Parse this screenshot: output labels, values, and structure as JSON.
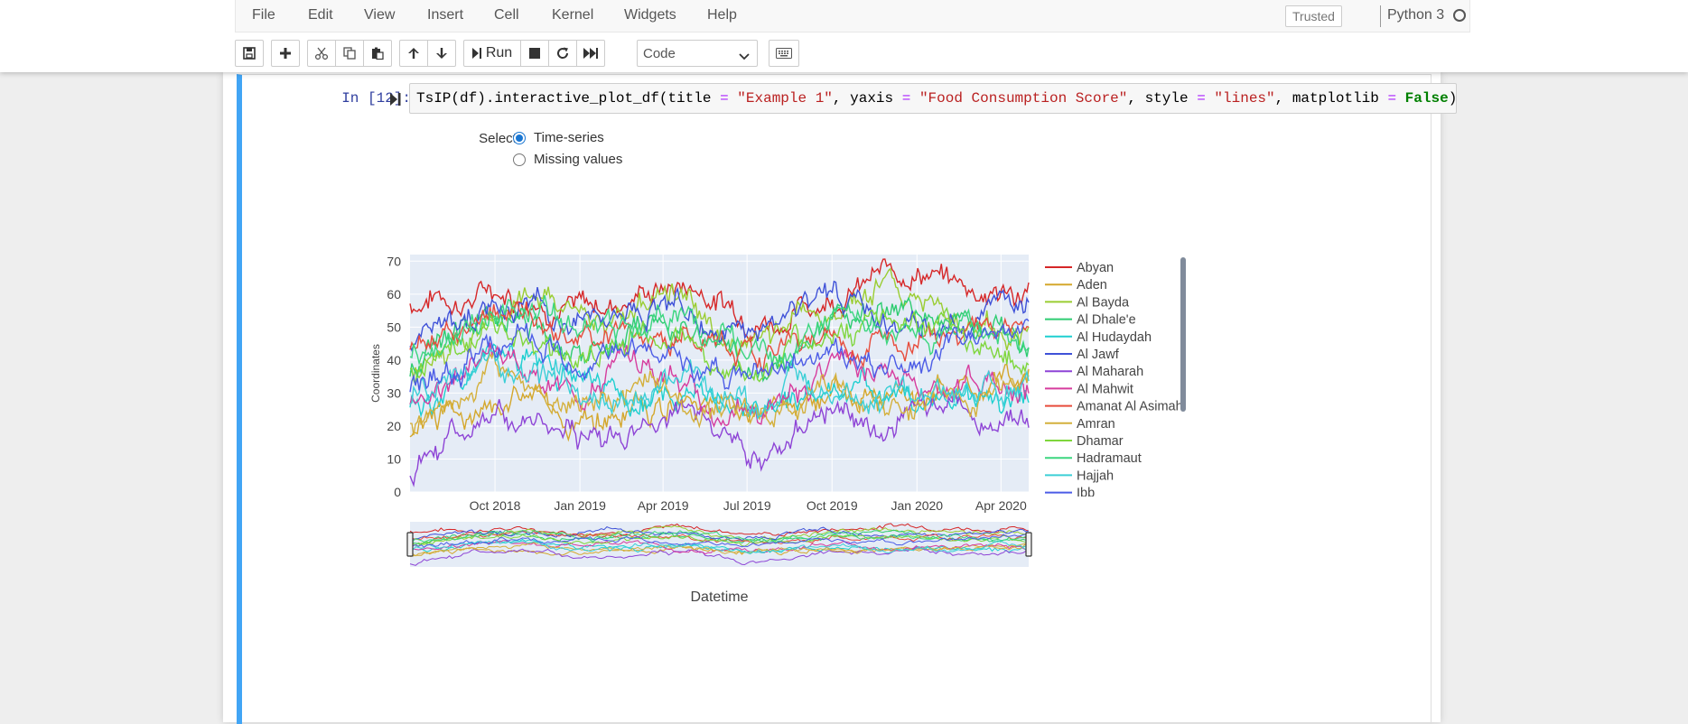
{
  "menu": {
    "items": [
      "File",
      "Edit",
      "View",
      "Insert",
      "Cell",
      "Kernel",
      "Widgets",
      "Help"
    ],
    "trusted": "Trusted",
    "kernel": "Python 3"
  },
  "toolbar": {
    "run_label": "Run",
    "cell_type": "Code",
    "icons": [
      "save-icon",
      "plus-icon",
      "cut-icon",
      "copy-icon",
      "paste-icon",
      "arrow-up-icon",
      "arrow-down-icon",
      "run-icon",
      "stop-icon",
      "restart-icon",
      "fast-forward-icon",
      "keyboard-icon"
    ]
  },
  "cell": {
    "prompt": "In [12]:",
    "code_tokens": [
      {
        "t": "TsIP(df).interactive_plot_df(title ",
        "c": ""
      },
      {
        "t": "=",
        "c": "op"
      },
      {
        "t": " ",
        "c": ""
      },
      {
        "t": "\"Example 1\"",
        "c": "str"
      },
      {
        "t": ", yaxis ",
        "c": ""
      },
      {
        "t": "=",
        "c": "op"
      },
      {
        "t": " ",
        "c": ""
      },
      {
        "t": "\"Food Consumption Score\"",
        "c": "str"
      },
      {
        "t": ", style ",
        "c": ""
      },
      {
        "t": "=",
        "c": "op"
      },
      {
        "t": " ",
        "c": ""
      },
      {
        "t": "\"lines\"",
        "c": "str"
      },
      {
        "t": ", matplotlib ",
        "c": ""
      },
      {
        "t": "=",
        "c": "op"
      },
      {
        "t": " ",
        "c": ""
      },
      {
        "t": "False",
        "c": "kw"
      },
      {
        "t": ")",
        "c": ""
      }
    ]
  },
  "widget": {
    "select_label": "Select:",
    "options": [
      "Time-series",
      "Missing values"
    ],
    "selected": "Time-series"
  },
  "colors": {
    "accent": "#42a5f5",
    "plot_bg": "#e5ecf6",
    "series": [
      "#d62728",
      "#d4a72c",
      "#9acd32",
      "#2ecc71",
      "#1fcfd0",
      "#3f51d8",
      "#8e44d6",
      "#d63c9e",
      "#e74c3c",
      "#d4b03c",
      "#7fd63c",
      "#3cd67f",
      "#3ccfd6",
      "#4c5ce6"
    ]
  },
  "chart_data": {
    "type": "line",
    "title": "",
    "xlabel": "Datetime",
    "ylabel": "Coordinates",
    "ylim": [
      0,
      72
    ],
    "yticks": [
      0,
      10,
      20,
      30,
      40,
      50,
      60,
      70
    ],
    "x_range": [
      "2018-07-01",
      "2020-05-01"
    ],
    "xticks": [
      "Oct 2018",
      "Jan 2019",
      "Apr 2019",
      "Jul 2019",
      "Oct 2019",
      "Jan 2020",
      "Apr 2020"
    ],
    "x_points": [
      "2018-07-01",
      "2018-08-01",
      "2018-09-01",
      "2018-10-01",
      "2018-11-01",
      "2018-12-01",
      "2019-01-01",
      "2019-02-01",
      "2019-03-01",
      "2019-04-01",
      "2019-05-01",
      "2019-06-01",
      "2019-07-01",
      "2019-08-01",
      "2019-09-01",
      "2019-10-01",
      "2019-11-01",
      "2019-12-01",
      "2020-01-01",
      "2020-02-01",
      "2020-03-01",
      "2020-04-01",
      "2020-05-01"
    ],
    "legend_position": "right",
    "range_slider": true,
    "series": [
      {
        "name": "Abyan",
        "values": [
          57,
          60,
          58,
          62,
          60,
          58,
          55,
          57,
          60,
          62,
          63,
          58,
          55,
          52,
          56,
          60,
          62,
          66,
          68,
          64,
          62,
          60,
          61
        ]
      },
      {
        "name": "Aden",
        "values": [
          17,
          22,
          26,
          30,
          28,
          25,
          20,
          22,
          26,
          28,
          30,
          26,
          24,
          26,
          28,
          30,
          28,
          26,
          28,
          30,
          32,
          34,
          36
        ]
      },
      {
        "name": "Al Bayda",
        "values": [
          34,
          40,
          48,
          55,
          60,
          58,
          50,
          52,
          56,
          60,
          58,
          50,
          44,
          46,
          50,
          55,
          60,
          64,
          58,
          54,
          52,
          50,
          48
        ]
      },
      {
        "name": "Al Dhale'e",
        "values": [
          38,
          44,
          50,
          54,
          50,
          46,
          42,
          44,
          48,
          52,
          50,
          44,
          40,
          42,
          46,
          50,
          54,
          56,
          52,
          50,
          48,
          46,
          44
        ]
      },
      {
        "name": "Al Hudaydah",
        "values": [
          26,
          30,
          36,
          42,
          40,
          36,
          32,
          30,
          28,
          30,
          32,
          28,
          26,
          28,
          30,
          32,
          30,
          28,
          30,
          32,
          30,
          28,
          30
        ]
      },
      {
        "name": "Al Jawf",
        "values": [
          45,
          50,
          56,
          58,
          56,
          52,
          54,
          56,
          58,
          56,
          54,
          50,
          48,
          52,
          58,
          56,
          54,
          52,
          50,
          52,
          54,
          56,
          58
        ]
      },
      {
        "name": "Al Maharah",
        "values": [
          3,
          8,
          16,
          22,
          24,
          22,
          18,
          16,
          20,
          24,
          26,
          16,
          8,
          12,
          20,
          24,
          22,
          20,
          24,
          22,
          20,
          22,
          24
        ]
      },
      {
        "name": "Al Mahwit",
        "values": [
          30,
          34,
          38,
          42,
          36,
          32,
          34,
          38,
          40,
          36,
          30,
          26,
          24,
          28,
          32,
          36,
          34,
          32,
          30,
          34,
          36,
          34,
          32
        ]
      },
      {
        "name": "Amanat Al Asimah",
        "values": [
          44,
          48,
          50,
          52,
          54,
          50,
          48,
          50,
          52,
          50,
          48,
          44,
          42,
          44,
          46,
          48,
          46,
          44,
          46,
          48,
          50,
          48,
          46
        ]
      },
      {
        "name": "Amran",
        "values": [
          22,
          26,
          30,
          34,
          32,
          28,
          26,
          28,
          30,
          32,
          30,
          26,
          22,
          24,
          28,
          32,
          30,
          28,
          26,
          28,
          30,
          32,
          34
        ]
      },
      {
        "name": "Dhamar",
        "values": [
          36,
          42,
          46,
          50,
          48,
          44,
          40,
          42,
          46,
          48,
          46,
          40,
          36,
          40,
          44,
          48,
          50,
          52,
          48,
          46,
          44,
          42,
          40
        ]
      },
      {
        "name": "Hadramaut",
        "values": [
          40,
          44,
          48,
          52,
          56,
          52,
          48,
          46,
          50,
          54,
          52,
          46,
          42,
          44,
          48,
          52,
          50,
          46,
          44,
          48,
          50,
          48,
          46
        ]
      },
      {
        "name": "Hajjah",
        "values": [
          28,
          32,
          36,
          40,
          38,
          34,
          30,
          28,
          30,
          34,
          36,
          30,
          26,
          28,
          32,
          34,
          30,
          28,
          26,
          28,
          30,
          32,
          30
        ]
      },
      {
        "name": "Ibb",
        "values": [
          32,
          36,
          40,
          44,
          42,
          40,
          38,
          40,
          42,
          40,
          38,
          34,
          32,
          36,
          40,
          42,
          40,
          38,
          36,
          40,
          44,
          48,
          52
        ]
      }
    ]
  }
}
